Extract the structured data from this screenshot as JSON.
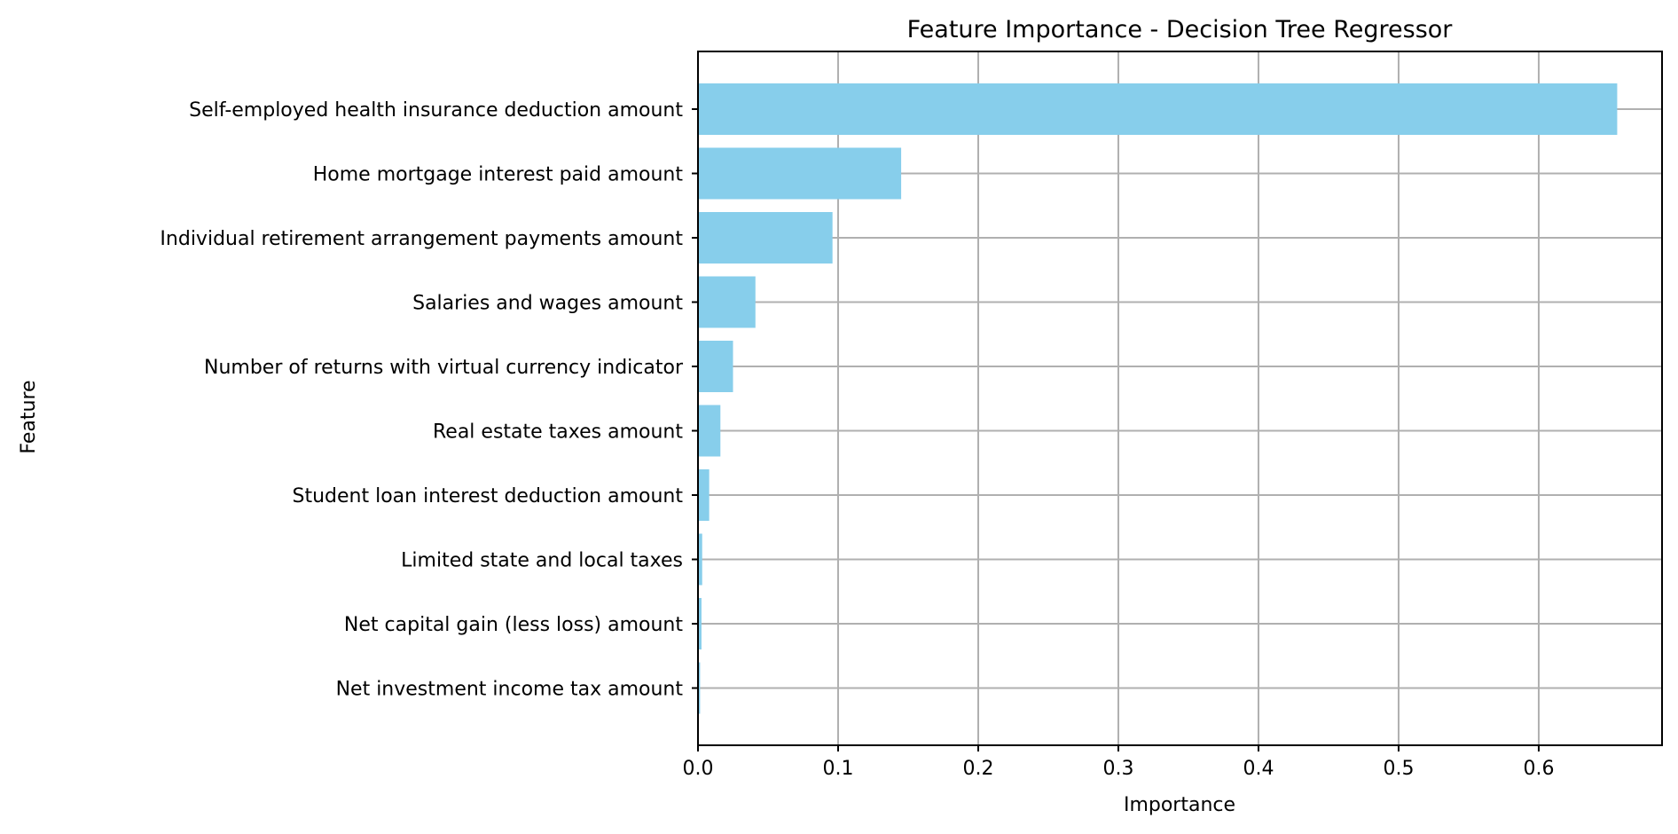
{
  "chart_data": {
    "type": "bar",
    "orientation": "horizontal",
    "title": "Feature Importance - Decision Tree Regressor",
    "xlabel": "Importance",
    "ylabel": "Feature",
    "xlim": [
      0,
      0.688
    ],
    "xticks": [
      0.0,
      0.1,
      0.2,
      0.3,
      0.4,
      0.5,
      0.6
    ],
    "xtick_labels": [
      "0.0",
      "0.1",
      "0.2",
      "0.3",
      "0.4",
      "0.5",
      "0.6"
    ],
    "grid": true,
    "bar_color": "#87CEEB",
    "categories": [
      "Self-employed health insurance deduction amount",
      "Home mortgage interest paid amount",
      "Individual retirement arrangement payments amount",
      "Salaries and wages amount",
      "Number of returns with virtual currency indicator",
      "Real estate taxes amount",
      "Student loan interest deduction amount",
      "Limited state and local taxes",
      "Net capital gain (less loss) amount",
      "Net investment income tax amount"
    ],
    "values": [
      0.656,
      0.145,
      0.096,
      0.041,
      0.025,
      0.016,
      0.008,
      0.003,
      0.0025,
      0.0015
    ]
  }
}
